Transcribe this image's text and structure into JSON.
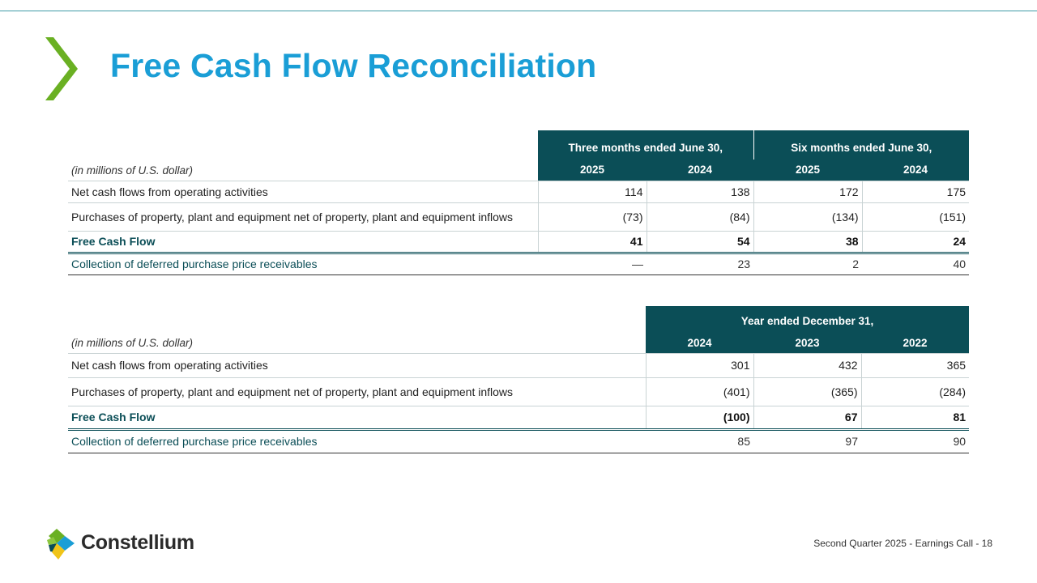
{
  "slide": {
    "title": "Free Cash Flow Reconciliation",
    "footer": "Second Quarter 2025 -  Earnings Call - 18",
    "brand": "Constellium",
    "colors": {
      "title": "#1a9ed6",
      "header_bg": "#0b4e57",
      "chevron": "#6ab023"
    }
  },
  "table1": {
    "unit_label": "(in millions of U.S. dollar)",
    "groups": [
      "Three months ended June 30,",
      "Six months ended June 30,"
    ],
    "years": [
      "2025",
      "2024",
      "2025",
      "2024"
    ],
    "rows": [
      {
        "label": "Net cash flows from operating activities",
        "values": [
          "114",
          "138",
          "172",
          "175"
        ]
      },
      {
        "label": "Purchases of property, plant and equipment net of property, plant and equipment inflows",
        "values": [
          "(73)",
          "(84)",
          "(134)",
          "(151)"
        ]
      },
      {
        "label": "Free Cash Flow",
        "values": [
          "41",
          "54",
          "38",
          "24"
        ]
      },
      {
        "label": "Collection of deferred purchase price receivables",
        "values": [
          "—",
          "23",
          "2",
          "40"
        ]
      }
    ]
  },
  "table2": {
    "unit_label": "(in millions of U.S. dollar)",
    "group": "Year ended December 31,",
    "years": [
      "2024",
      "2023",
      "2022"
    ],
    "rows": [
      {
        "label": "Net cash flows from operating activities",
        "values": [
          "301",
          "432",
          "365"
        ]
      },
      {
        "label": "Purchases of property, plant and equipment net of property, plant and equipment inflows",
        "values": [
          "(401)",
          "(365)",
          "(284)"
        ]
      },
      {
        "label": "Free Cash Flow",
        "values": [
          "(100)",
          "67",
          "81"
        ]
      },
      {
        "label": "Collection of deferred purchase price receivables",
        "values": [
          "85",
          "97",
          "90"
        ]
      }
    ]
  }
}
